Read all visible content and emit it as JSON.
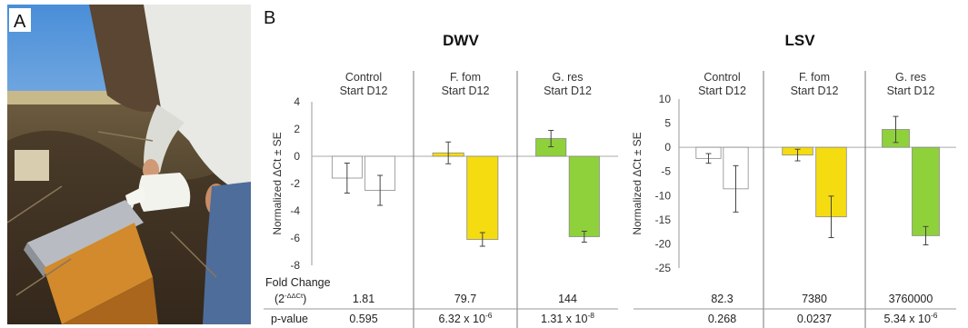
{
  "panel_a_label": "A",
  "panel_b_label": "B",
  "group_time_labels": "Start  D12",
  "fold_change_label": "Fold Change",
  "fold_change_formula": "(2",
  "fold_change_formula_sup": "-ΔΔCt",
  "fold_change_formula_close": ")",
  "pvalue_label": "p-value",
  "colors": {
    "control": "#ffffff",
    "f_fom": "#f5dc10",
    "g_res": "#8fd13a",
    "edge": "#8a8a8a",
    "divider": "#777777"
  },
  "chart_data": [
    {
      "type": "bar",
      "title": "DWV",
      "ylabel": "Normalized ΔCt ± SE",
      "ylim": [
        -8,
        4
      ],
      "yticks": [
        4,
        2,
        0,
        -2,
        -4,
        -6,
        -8
      ],
      "groups": [
        {
          "name": "Control",
          "color": "control",
          "bars": [
            {
              "x": "Start",
              "value": -1.6,
              "err": 1.1
            },
            {
              "x": "D12",
              "value": -2.5,
              "err": 1.1
            }
          ],
          "fold_change": "1.81",
          "pvalue": "0.595",
          "pvalue_exp": ""
        },
        {
          "name": "F. fom",
          "color": "f_fom",
          "bars": [
            {
              "x": "Start",
              "value": 0.25,
              "err": 0.8
            },
            {
              "x": "D12",
              "value": -6.1,
              "err": 0.5
            }
          ],
          "fold_change": "79.7",
          "pvalue": "6.32 x 10",
          "pvalue_exp": "-6"
        },
        {
          "name": "G. res",
          "color": "g_res",
          "bars": [
            {
              "x": "Start",
              "value": 1.3,
              "err": 0.6
            },
            {
              "x": "D12",
              "value": -5.9,
              "err": 0.4
            }
          ],
          "fold_change": "144",
          "pvalue": "1.31 x 10",
          "pvalue_exp": "-8"
        }
      ]
    },
    {
      "type": "bar",
      "title": "LSV",
      "ylabel": "Normalized ΔCt ± SE",
      "ylim": [
        -25,
        10
      ],
      "yticks": [
        10,
        5,
        0,
        -5,
        -10,
        -15,
        -20,
        -25
      ],
      "groups": [
        {
          "name": "Control",
          "color": "control",
          "bars": [
            {
              "x": "Start",
              "value": -2.3,
              "err": 1.0
            },
            {
              "x": "D12",
              "value": -8.6,
              "err": 4.8
            }
          ],
          "fold_change": "82.3",
          "pvalue": "0.268",
          "pvalue_exp": ""
        },
        {
          "name": "F. fom",
          "color": "f_fom",
          "bars": [
            {
              "x": "Start",
              "value": -1.6,
              "err": 1.2
            },
            {
              "x": "D12",
              "value": -14.4,
              "err": 4.3
            }
          ],
          "fold_change": "7380",
          "pvalue": "0.0237",
          "pvalue_exp": ""
        },
        {
          "name": "G. res",
          "color": "g_res",
          "bars": [
            {
              "x": "Start",
              "value": 3.7,
              "err": 2.7
            },
            {
              "x": "D12",
              "value": -18.3,
              "err": 1.9
            }
          ],
          "fold_change": "3760000",
          "pvalue": "5.34 x 10",
          "pvalue_exp": "-6"
        }
      ]
    }
  ]
}
